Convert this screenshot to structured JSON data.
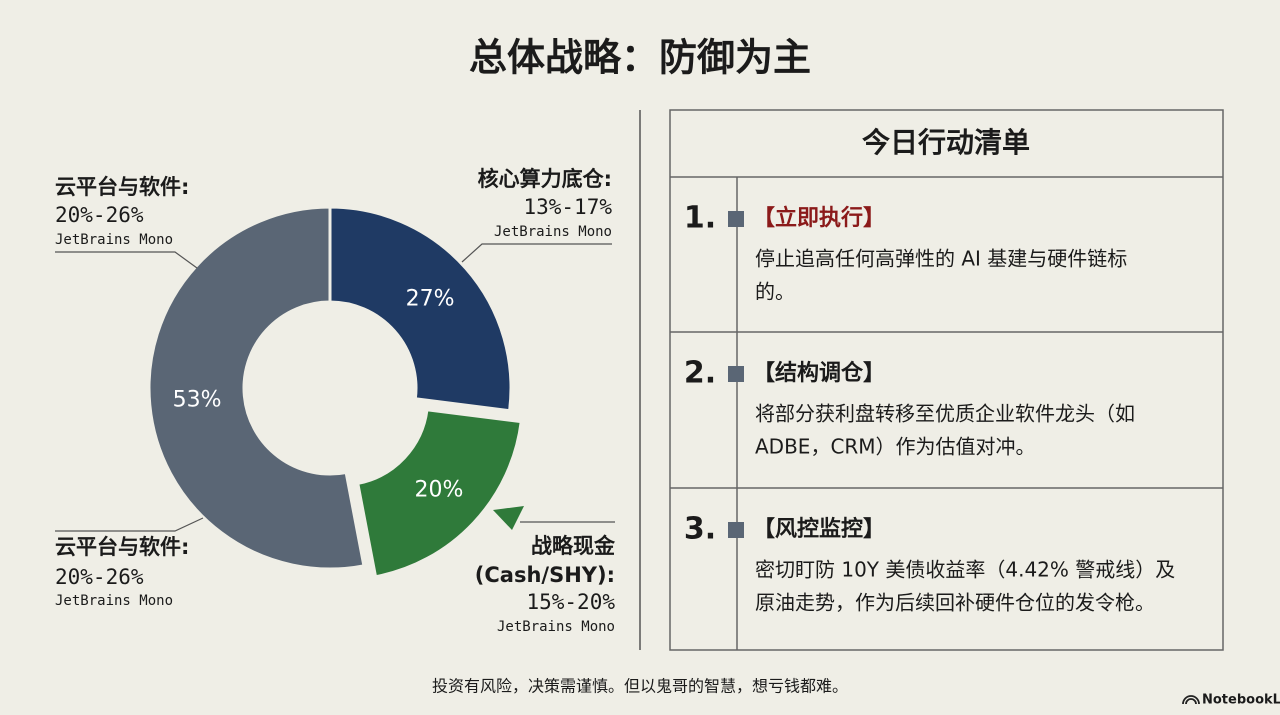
{
  "title": "总体战略：防御为主",
  "chart_data": {
    "type": "pie",
    "donut": true,
    "values": [
      27,
      20,
      53
    ],
    "value_labels": [
      "27%",
      "20%",
      "53%"
    ],
    "colors": [
      "#1f3a64",
      "#2f7a3a",
      "#5a6675"
    ],
    "explode": [
      false,
      true,
      false
    ],
    "annotations": [
      {
        "lines": [
          "核心算力底仓:",
          "13%-17%",
          "JetBrains Mono"
        ]
      },
      {
        "lines": [
          "战略现金",
          "(Cash/SHY):",
          "15%-20%",
          "JetBrains Mono"
        ]
      },
      {
        "lines": [
          "云平台与软件:",
          "20%-26%",
          "JetBrains Mono"
        ]
      },
      {
        "lines": [
          "云平台与软件:",
          "20%-26%",
          "JetBrains Mono"
        ]
      }
    ]
  },
  "checklist": {
    "title": "今日行动清单",
    "items": [
      {
        "number": "1.",
        "heading": "【立即执行】",
        "lines": [
          "停止追高任何高弹性的 AI 基建与硬件链标",
          "的。"
        ]
      },
      {
        "number": "2.",
        "heading": "【结构调仓】",
        "lines": [
          "将部分获利盘转移至优质企业软件龙头（如",
          "ADBE，CRM）作为估值对冲。"
        ]
      },
      {
        "number": "3.",
        "heading": "【风控监控】",
        "lines": [
          "密切盯防 10Y 美债收益率（4.42% 警戒线）及",
          "原油走势，作为后续回补硬件仓位的发令枪。"
        ]
      }
    ]
  },
  "footer": "投资有风险，决策需谨慎。但以鬼哥的智慧，想亏钱都难。",
  "brand": "NotebookLM"
}
